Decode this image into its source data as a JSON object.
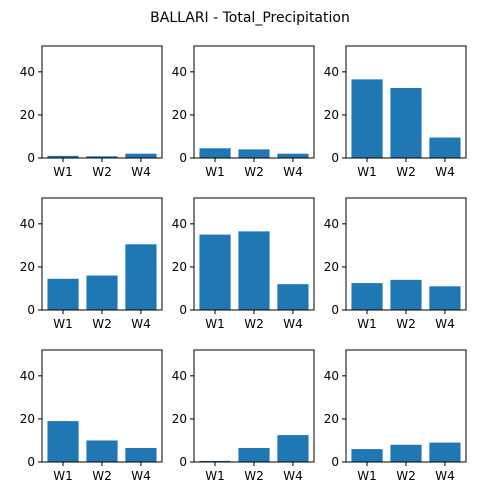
{
  "figure": {
    "title": "BALLARI - Total_Precipitation"
  },
  "colors": {
    "bar": "#1f77b4",
    "axis": "#000000",
    "background": "#ffffff"
  },
  "chart_data": [
    {
      "type": "bar",
      "categories": [
        "W1",
        "W2",
        "W4"
      ],
      "values": [
        1.0,
        0.8,
        2.0
      ],
      "ylim": [
        0,
        52
      ],
      "yticks": [
        0,
        20,
        40
      ],
      "grid": false
    },
    {
      "type": "bar",
      "categories": [
        "W1",
        "W2",
        "W4"
      ],
      "values": [
        4.5,
        4.0,
        2.0
      ],
      "ylim": [
        0,
        52
      ],
      "yticks": [
        0,
        20,
        40
      ],
      "grid": false
    },
    {
      "type": "bar",
      "categories": [
        "W1",
        "W2",
        "W4"
      ],
      "values": [
        36.5,
        32.5,
        9.5
      ],
      "ylim": [
        0,
        52
      ],
      "yticks": [
        0,
        20,
        40
      ],
      "grid": false
    },
    {
      "type": "bar",
      "categories": [
        "W1",
        "W2",
        "W4"
      ],
      "values": [
        14.5,
        16.0,
        30.5
      ],
      "ylim": [
        0,
        52
      ],
      "yticks": [
        0,
        20,
        40
      ],
      "grid": false
    },
    {
      "type": "bar",
      "categories": [
        "W1",
        "W2",
        "W4"
      ],
      "values": [
        35.0,
        36.5,
        12.0
      ],
      "ylim": [
        0,
        52
      ],
      "yticks": [
        0,
        20,
        40
      ],
      "grid": false
    },
    {
      "type": "bar",
      "categories": [
        "W1",
        "W2",
        "W4"
      ],
      "values": [
        12.5,
        14.0,
        11.0
      ],
      "ylim": [
        0,
        52
      ],
      "yticks": [
        0,
        20,
        40
      ],
      "grid": false
    },
    {
      "type": "bar",
      "categories": [
        "W1",
        "W2",
        "W4"
      ],
      "values": [
        19.0,
        10.0,
        6.5
      ],
      "ylim": [
        0,
        52
      ],
      "yticks": [
        0,
        20,
        40
      ],
      "grid": false
    },
    {
      "type": "bar",
      "categories": [
        "W1",
        "W2",
        "W4"
      ],
      "values": [
        0.5,
        6.5,
        12.5
      ],
      "ylim": [
        0,
        52
      ],
      "yticks": [
        0,
        20,
        40
      ],
      "grid": false
    },
    {
      "type": "bar",
      "categories": [
        "W1",
        "W2",
        "W4"
      ],
      "values": [
        6.0,
        8.0,
        9.0
      ],
      "ylim": [
        0,
        52
      ],
      "yticks": [
        0,
        20,
        40
      ],
      "grid": false
    }
  ]
}
